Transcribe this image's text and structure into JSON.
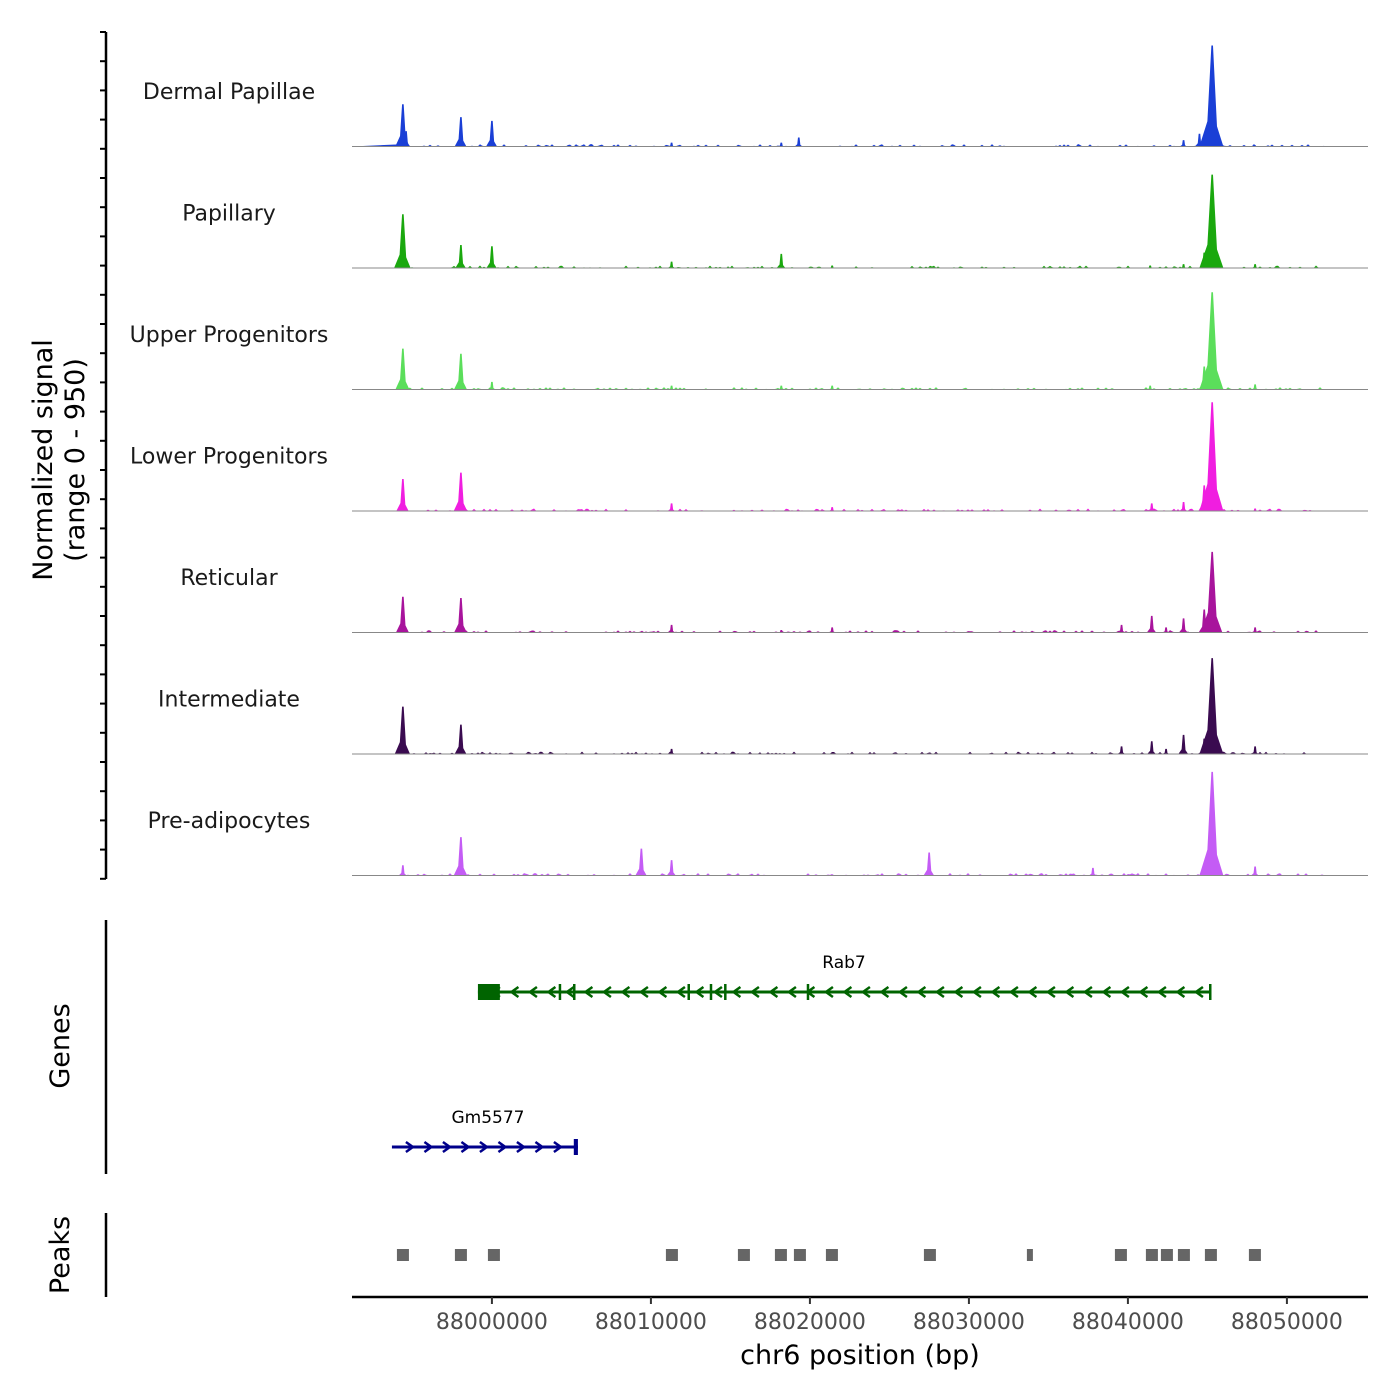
{
  "chart_data": {
    "type": "area",
    "title": "",
    "xlabel": "chr6 position (bp)",
    "ylabel": [
      "Normalized signal",
      "(range 0 - 950)"
    ],
    "ylim": [
      0,
      950
    ],
    "xlim": [
      87991200,
      88055100
    ],
    "x_ticks": [
      88000000,
      88010000,
      88020000,
      88030000,
      88040000,
      88050000
    ],
    "x_tick_labels": [
      "88000000",
      "88010000",
      "88020000",
      "88030000",
      "88040000",
      "88050000"
    ],
    "tracks": [
      {
        "name": "Dermal Papillae",
        "color": "#1a3fd6",
        "peaks": [
          [
            87994400,
            330
          ],
          [
            87994600,
            120
          ],
          [
            87998050,
            230
          ],
          [
            88000000,
            200
          ],
          [
            88011300,
            30
          ],
          [
            88018200,
            30
          ],
          [
            88019300,
            70
          ],
          [
            88043500,
            50
          ],
          [
            88044500,
            100
          ],
          [
            88045000,
            170
          ],
          [
            88045300,
            790
          ],
          [
            88045600,
            100
          ],
          [
            88047990,
            10
          ]
        ]
      },
      {
        "name": "Papillary",
        "color": "#1aa80e",
        "peaks": [
          [
            87994400,
            420
          ],
          [
            87998050,
            180
          ],
          [
            88000000,
            170
          ],
          [
            88011300,
            50
          ],
          [
            88018200,
            110
          ],
          [
            88021400,
            20
          ],
          [
            88041400,
            20
          ],
          [
            88043500,
            30
          ],
          [
            88044800,
            120
          ],
          [
            88045300,
            730
          ],
          [
            88048000,
            30
          ]
        ]
      },
      {
        "name": "Upper Progenitors",
        "color": "#5bde5b",
        "peaks": [
          [
            87994400,
            320
          ],
          [
            87998050,
            280
          ],
          [
            88000000,
            60
          ],
          [
            88011300,
            30
          ],
          [
            88018200,
            30
          ],
          [
            88021400,
            30
          ],
          [
            88041400,
            30
          ],
          [
            88044800,
            180
          ],
          [
            88045300,
            760
          ],
          [
            88048000,
            40
          ]
        ]
      },
      {
        "name": "Lower Progenitors",
        "color": "#f01ee0",
        "peaks": [
          [
            87994400,
            250
          ],
          [
            87998050,
            300
          ],
          [
            88011300,
            60
          ],
          [
            88021400,
            30
          ],
          [
            88041500,
            60
          ],
          [
            88043500,
            70
          ],
          [
            88044800,
            200
          ],
          [
            88045300,
            850
          ],
          [
            88048000,
            20
          ]
        ]
      },
      {
        "name": "Reticular",
        "color": "#a8149c",
        "peaks": [
          [
            87994400,
            280
          ],
          [
            87998050,
            270
          ],
          [
            88011300,
            60
          ],
          [
            88018200,
            20
          ],
          [
            88021400,
            40
          ],
          [
            88039600,
            60
          ],
          [
            88041500,
            130
          ],
          [
            88042400,
            40
          ],
          [
            88043500,
            110
          ],
          [
            88044800,
            180
          ],
          [
            88045300,
            630
          ],
          [
            88048000,
            40
          ]
        ]
      },
      {
        "name": "Intermediate",
        "color": "#3a0b50",
        "peaks": [
          [
            87994400,
            370
          ],
          [
            87998050,
            230
          ],
          [
            88011300,
            40
          ],
          [
            88039600,
            60
          ],
          [
            88041500,
            100
          ],
          [
            88042400,
            40
          ],
          [
            88043500,
            150
          ],
          [
            88044800,
            120
          ],
          [
            88045300,
            750
          ],
          [
            88048000,
            60
          ]
        ]
      },
      {
        "name": "Pre-adipocytes",
        "color": "#c45cf5",
        "peaks": [
          [
            87994400,
            80
          ],
          [
            87998050,
            300
          ],
          [
            88009400,
            210
          ],
          [
            88011300,
            120
          ],
          [
            88027500,
            180
          ],
          [
            88037800,
            60
          ],
          [
            88045300,
            810
          ],
          [
            88048000,
            70
          ]
        ]
      }
    ],
    "genes_label": "Genes",
    "genes": [
      {
        "name": "Rab7",
        "strand": "-",
        "start": 87999120,
        "end": 88045220,
        "color": "#006400",
        "exons": [
          [
            87999120,
            88000500
          ],
          [
            88004200,
            88004300
          ],
          [
            88005100,
            88005200
          ],
          [
            88012300,
            88012400
          ],
          [
            88013700,
            88013800
          ],
          [
            88014600,
            88014700
          ],
          [
            88019800,
            88019900
          ],
          [
            88045100,
            88045220
          ]
        ]
      },
      {
        "name": "Gm5577",
        "strand": "+",
        "start": 87993711,
        "end": 88005409,
        "color": "#00008b",
        "exons": [
          [
            88005150,
            88005409
          ]
        ]
      }
    ],
    "peaks_label": "Peaks",
    "peak_regions": [
      87994403,
      87998050,
      88000126,
      88011321,
      88015849,
      88018176,
      88019371,
      88021384,
      88027547,
      88033836,
      88039560,
      88041509,
      88042453,
      88043522,
      88045220,
      88047987
    ],
    "peak_color": "#666666"
  }
}
